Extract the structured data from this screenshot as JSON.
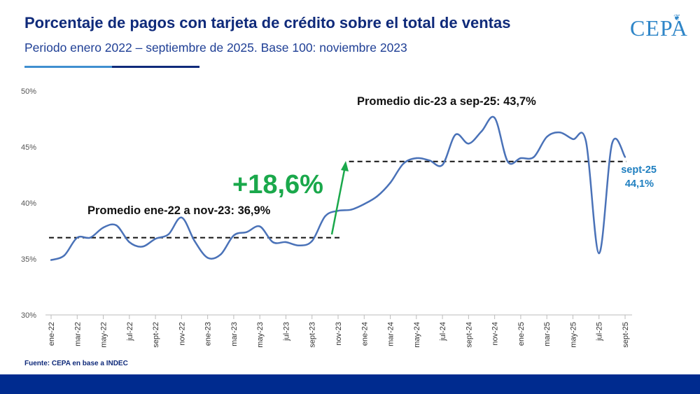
{
  "header": {
    "title": "Porcentaje de pagos con tarjeta de crédito sobre el total de ventas",
    "subtitle": "Periodo enero 2022 – septiembre de 2025. Base 100: noviembre 2023"
  },
  "logo": {
    "text": "CEPA"
  },
  "source": "Fuente: CEPA en base a INDEC",
  "colors": {
    "line": "#4a72b8",
    "title": "#0f2a7a",
    "accent_green": "#1aa84b",
    "last_label": "#1f7fc0",
    "footer": "#002b8f"
  },
  "chart_data": {
    "type": "line",
    "title": "Porcentaje de pagos con tarjeta de crédito sobre el total de ventas",
    "ylim": [
      30,
      50
    ],
    "y_ticks": [
      "30%",
      "35%",
      "40%",
      "45%",
      "50%"
    ],
    "y_tick_values": [
      30,
      35,
      40,
      45,
      50
    ],
    "x_tick_labels": [
      "ene-22",
      "mar-22",
      "may-22",
      "jul-22",
      "sept-22",
      "nov-22",
      "ene-23",
      "mar-23",
      "may-23",
      "jul-23",
      "sept-23",
      "nov-23",
      "ene-24",
      "mar-24",
      "may-24",
      "jul-24",
      "sept-24",
      "nov-24",
      "ene-25",
      "mar-25",
      "may-25",
      "jul-25",
      "sept-25"
    ],
    "x_tick_indices": [
      0,
      2,
      4,
      6,
      8,
      10,
      12,
      14,
      16,
      18,
      20,
      22,
      24,
      26,
      28,
      30,
      32,
      34,
      36,
      38,
      40,
      42,
      44
    ],
    "categories": [
      "ene-22",
      "feb-22",
      "mar-22",
      "abr-22",
      "may-22",
      "jun-22",
      "jul-22",
      "ago-22",
      "sept-22",
      "oct-22",
      "nov-22",
      "dic-22",
      "ene-23",
      "feb-23",
      "mar-23",
      "abr-23",
      "may-23",
      "jun-23",
      "jul-23",
      "ago-23",
      "sept-23",
      "oct-23",
      "nov-23",
      "dic-23",
      "ene-24",
      "feb-24",
      "mar-24",
      "abr-24",
      "may-24",
      "jun-24",
      "jul-24",
      "ago-24",
      "sept-24",
      "oct-24",
      "nov-24",
      "dic-24",
      "ene-25",
      "feb-25",
      "mar-25",
      "abr-25",
      "may-25",
      "jun-25",
      "jul-25",
      "ago-25",
      "sept-25"
    ],
    "series": [
      {
        "name": "Porcentaje de pagos con tarjeta de crédito",
        "values": [
          34.9,
          35.3,
          36.9,
          36.9,
          37.8,
          38.0,
          36.5,
          36.1,
          36.8,
          37.2,
          38.7,
          36.6,
          35.1,
          35.4,
          37.1,
          37.4,
          37.9,
          36.5,
          36.5,
          36.2,
          36.6,
          38.8,
          39.3,
          39.4,
          39.9,
          40.6,
          41.8,
          43.5,
          44.0,
          43.8,
          43.4,
          46.1,
          45.3,
          46.4,
          47.6,
          43.7,
          44.0,
          44.1,
          45.9,
          46.3,
          45.7,
          45.5,
          35.5,
          45.3,
          44.1
        ]
      }
    ],
    "averages": [
      {
        "label": "Promedio ene-22 a nov-23: 36,9%",
        "value": 36.9,
        "from_index": 0,
        "to_index": 22
      },
      {
        "label": "Promedio dic-23 a sep-25: 43,7%",
        "value": 43.7,
        "from_index": 23,
        "to_index": 44
      }
    ],
    "change_label": "+18,6%",
    "last_point": {
      "category": "sept-25",
      "value_label": "44,1%"
    }
  }
}
